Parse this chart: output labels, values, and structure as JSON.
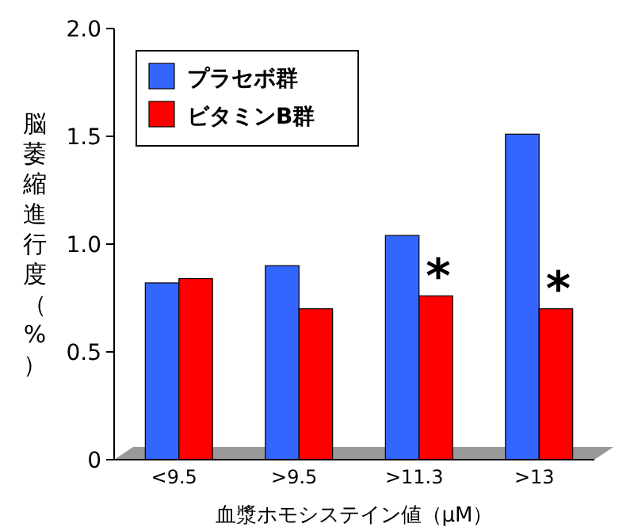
{
  "chart_data": {
    "type": "bar",
    "categories": [
      "<9.5",
      ">9.5",
      ">11.3",
      ">13"
    ],
    "series": [
      {
        "name": "プラセボ群",
        "color": "#3366ff",
        "values": [
          0.82,
          0.9,
          1.04,
          1.51
        ]
      },
      {
        "name": "ビタミンB群",
        "color": "#ff0000",
        "values": [
          0.84,
          0.7,
          0.76,
          0.7
        ]
      }
    ],
    "xlabel": "血漿ホモシステイン値（μM）",
    "ylabel": "脳萎縮進行度（%）",
    "ylim": [
      0,
      2.0
    ],
    "yticks": [
      0,
      0.5,
      {
        "value": 1.0,
        "label": "1.0"
      },
      1.5,
      {
        "value": 2.0,
        "label": "2.0"
      }
    ],
    "annotations": [
      {
        "text": "*",
        "x": ">11.3",
        "y": 0.88
      },
      {
        "text": "*",
        "x": ">13",
        "y": 0.82
      }
    ],
    "legend": "top left",
    "grid": false
  }
}
